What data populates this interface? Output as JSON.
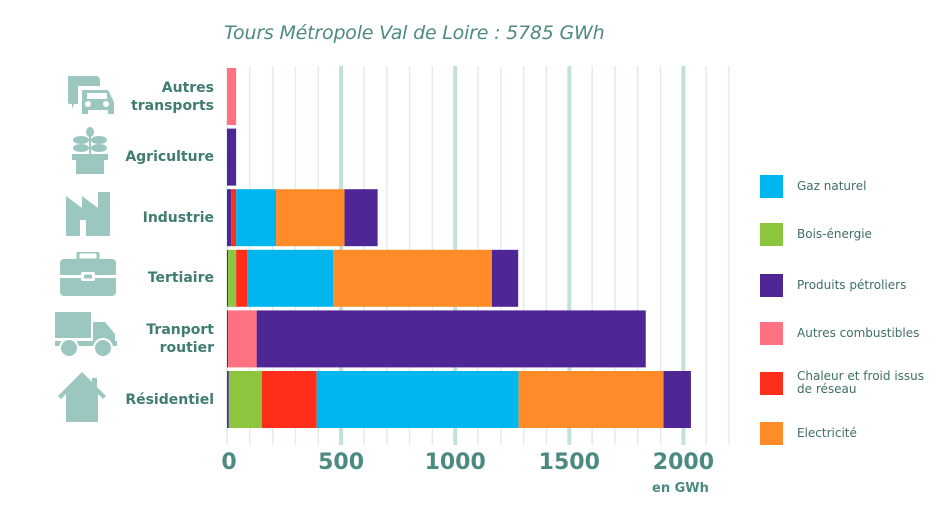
{
  "chart_data": {
    "type": "bar",
    "orientation": "horizontal",
    "stacked": true,
    "title": "Tours Métropole Val de Loire : 5785 GWh",
    "xlabel": "en GWh",
    "ylabel": "",
    "xlim": [
      0,
      2200
    ],
    "xticks": [
      0,
      500,
      1000,
      1500,
      2000
    ],
    "grid": "vertical, every 100 GWh (thicker every 500)",
    "legend_position": "right",
    "categories": [
      "Autres transports",
      "Agriculture",
      "Industrie",
      "Tertiaire",
      "Tranport routier",
      "Résidentiel"
    ],
    "category_lines": [
      [
        "Autres",
        "transports"
      ],
      [
        "Agriculture"
      ],
      [
        "Industrie"
      ],
      [
        "Tertiaire"
      ],
      [
        "Tranport",
        "routier"
      ],
      [
        "Résidentiel"
      ]
    ],
    "category_icons": [
      "car-bus-icon",
      "plant-pot-icon",
      "factory-icon",
      "briefcase-icon",
      "truck-icon",
      "house-icon"
    ],
    "series": [
      {
        "name": "Produits pétroliers (base)",
        "legend_index": 2,
        "values": [
          0,
          40,
          18,
          5,
          5,
          8
        ]
      },
      {
        "name": "Bois-énergie",
        "legend_index": 1,
        "values": [
          0,
          0,
          0,
          35,
          0,
          145
        ]
      },
      {
        "name": "Autres combustibles",
        "legend_index": 3,
        "values": [
          40,
          0,
          0,
          0,
          125,
          0
        ]
      },
      {
        "name": "Chaleur et froid issus de réseau",
        "legend_index": 4,
        "values": [
          0,
          0,
          22,
          48,
          0,
          240
        ]
      },
      {
        "name": "Gaz naturel",
        "legend_index": 0,
        "values": [
          0,
          0,
          175,
          378,
          0,
          885
        ]
      },
      {
        "name": "Electricité",
        "legend_index": 5,
        "values": [
          0,
          0,
          300,
          695,
          0,
          635
        ]
      },
      {
        "name": "Produits pétroliers",
        "legend_index": 2,
        "values": [
          0,
          0,
          145,
          115,
          1705,
          120
        ]
      }
    ],
    "colors": {
      "Gaz naturel": "#00b6ee",
      "Bois-énergie": "#8cc63f",
      "Produits pétroliers": "#4f2696",
      "Produits pétroliers (base)": "#4f2696",
      "Autres combustibles": "#fd7180",
      "Chaleur et froid issus de réseau": "#ff2e1a",
      "Electricité": "#ff8c28"
    },
    "legend": [
      {
        "label": "Gaz naturel",
        "color": "#00b6ee"
      },
      {
        "label": "Bois-énergie",
        "color": "#8cc63f"
      },
      {
        "label": "Produits pétroliers",
        "color": "#4f2696"
      },
      {
        "label": "Autres combustibles",
        "color": "#fd7180"
      },
      {
        "label": "Chaleur et froid issus de réseau",
        "color": "#ff2e1a"
      },
      {
        "label": "Electricité",
        "color": "#ff8c28"
      }
    ]
  },
  "theme": {
    "text_color": "#3f7c72",
    "icon_color": "#9cc7c1",
    "grid_color": "#dfeeec",
    "grid_major_color": "#c3e0dc"
  }
}
